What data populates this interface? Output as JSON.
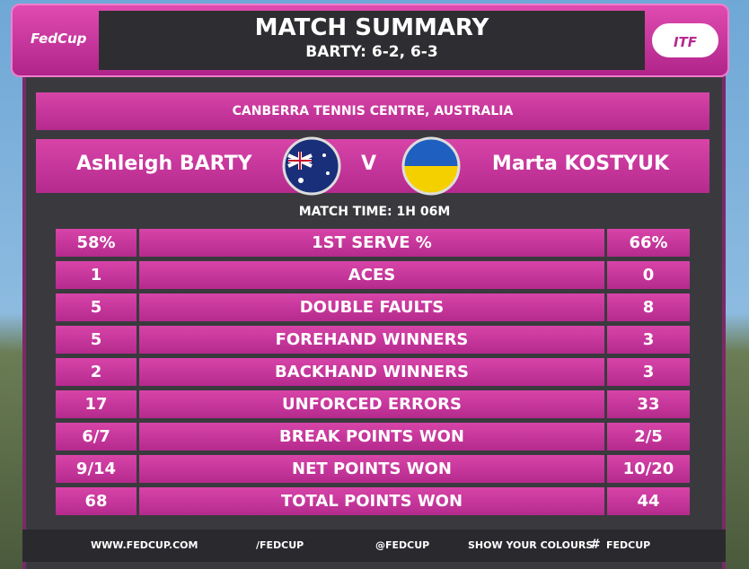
{
  "header": {
    "title": "MATCH SUMMARY",
    "subtitle": "BARTY: 6-2, 6-3",
    "left_logo": "FedCup",
    "right_logo": "ITF"
  },
  "venue": "CANBERRA TENNIS CENTRE, AUSTRALIA",
  "players": {
    "left": "Ashleigh BARTY",
    "versus": "V",
    "right": "Marta KOSTYUK"
  },
  "match_time": "MATCH TIME: 1H 06M",
  "stats": [
    [
      "58%",
      "1ST SERVE %",
      "66%"
    ],
    [
      "1",
      "ACES",
      "0"
    ],
    [
      "5",
      "DOUBLE FAULTS",
      "8"
    ],
    [
      "5",
      "FOREHAND WINNERS",
      "3"
    ],
    [
      "2",
      "BACKHAND WINNERS",
      "3"
    ],
    [
      "17",
      "UNFORCED ERRORS",
      "33"
    ],
    [
      "6/7",
      "BREAK POINTS WON",
      "2/5"
    ],
    [
      "9/14",
      "NET POINTS WON",
      "10/20"
    ],
    [
      "68",
      "TOTAL POINTS WON",
      "44"
    ]
  ],
  "footer": {
    "website": "WWW.FEDCUP.COM",
    "facebook": "/FEDCUP",
    "twitter": "@FEDCUP",
    "slogan": "SHOW YOUR COLOURS",
    "hashtag": "#",
    "tag": "FEDCUP"
  }
}
